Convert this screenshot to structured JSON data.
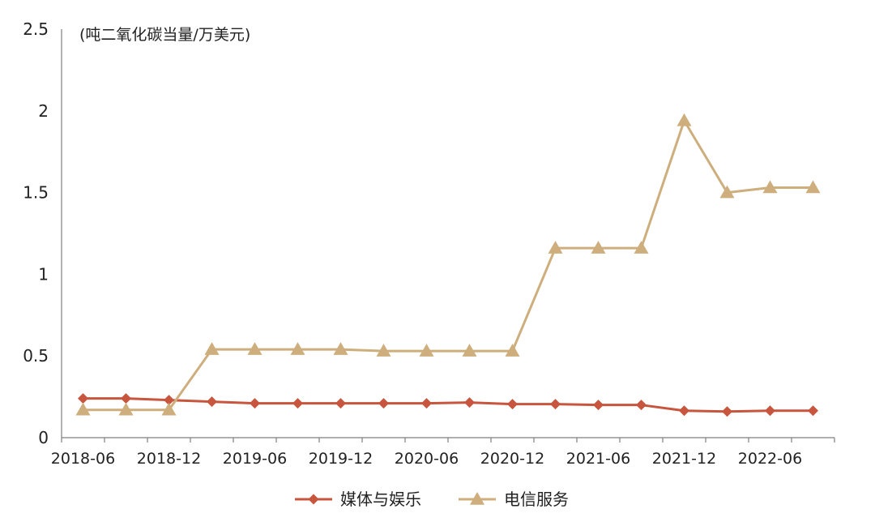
{
  "chart_data": {
    "type": "line",
    "title": "",
    "unit_label": "(吨二氧化碳当量/万美元)",
    "xlabel": "",
    "ylabel": "",
    "ylim": [
      0,
      2.5
    ],
    "y_ticks": [
      "0",
      "0.5",
      "1",
      "1.5",
      "2",
      "2.5"
    ],
    "y_tick_values": [
      0,
      0.5,
      1,
      1.5,
      2,
      2.5
    ],
    "x": [
      "2018-06",
      "2018-09",
      "2018-12",
      "2019-03",
      "2019-06",
      "2019-09",
      "2019-12",
      "2020-03",
      "2020-06",
      "2020-09",
      "2020-12",
      "2021-03",
      "2021-06",
      "2021-09",
      "2021-12",
      "2022-03",
      "2022-06",
      "2022-09"
    ],
    "x_tick_labels": [
      "2018-06",
      "2018-12",
      "2019-06",
      "2019-12",
      "2020-06",
      "2020-12",
      "2021-06",
      "2021-12",
      "2022-06"
    ],
    "x_tick_indices": [
      0,
      2,
      4,
      6,
      8,
      10,
      12,
      14,
      16
    ],
    "grid": false,
    "legend_position": "bottom",
    "series": [
      {
        "name": "媒体与娱乐",
        "color": "#C8553D",
        "marker": "diamond",
        "values": [
          0.24,
          0.24,
          0.23,
          0.22,
          0.21,
          0.21,
          0.21,
          0.21,
          0.21,
          0.215,
          0.205,
          0.205,
          0.2,
          0.2,
          0.165,
          0.16,
          0.165,
          0.165
        ]
      },
      {
        "name": "电信服务",
        "color": "#CDAE7C",
        "marker": "triangle",
        "values": [
          0.17,
          0.17,
          0.17,
          0.54,
          0.54,
          0.54,
          0.54,
          0.53,
          0.53,
          0.53,
          0.53,
          1.16,
          1.16,
          1.16,
          1.94,
          1.5,
          1.53,
          1.53
        ]
      }
    ]
  }
}
